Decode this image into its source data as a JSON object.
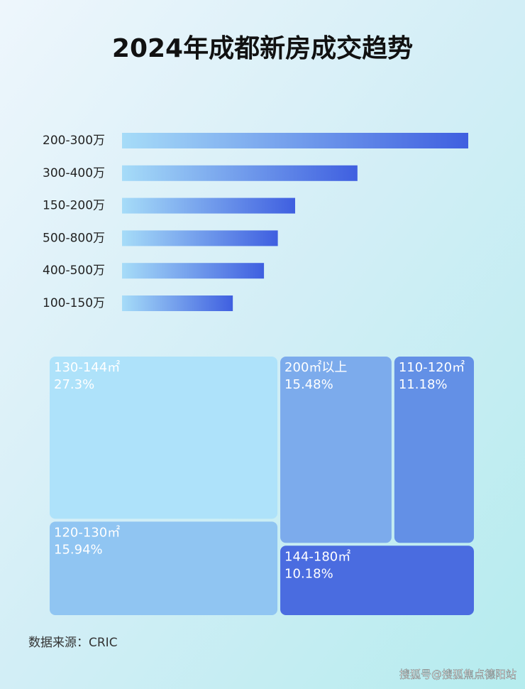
{
  "title": "2024年成都新房成交趋势",
  "chart_data": [
    {
      "type": "bar",
      "orientation": "horizontal",
      "categories": [
        "200-300万",
        "300-400万",
        "150-200万",
        "500-800万",
        "400-500万",
        "100-150万"
      ],
      "values": [
        100,
        68,
        50,
        45,
        41,
        32
      ],
      "xlim": [
        0,
        100
      ],
      "color": "#3f5fe0"
    },
    {
      "type": "treemap",
      "categories": [
        "130-144㎡",
        "120-130㎡",
        "200㎡以上",
        "110-120㎡",
        "144-180㎡"
      ],
      "values": [
        27.3,
        15.94,
        15.48,
        11.18,
        10.18
      ],
      "value_labels": [
        "27.3%",
        "15.94%",
        "15.48%",
        "11.18%",
        "10.18%"
      ],
      "colors": [
        "#aee2fa",
        "#90c5f2",
        "#7cabec",
        "#6390e6",
        "#4a6ce0"
      ]
    }
  ],
  "source": "数据来源：CRIC",
  "watermark": "搜狐号@搜狐焦点德阳站"
}
